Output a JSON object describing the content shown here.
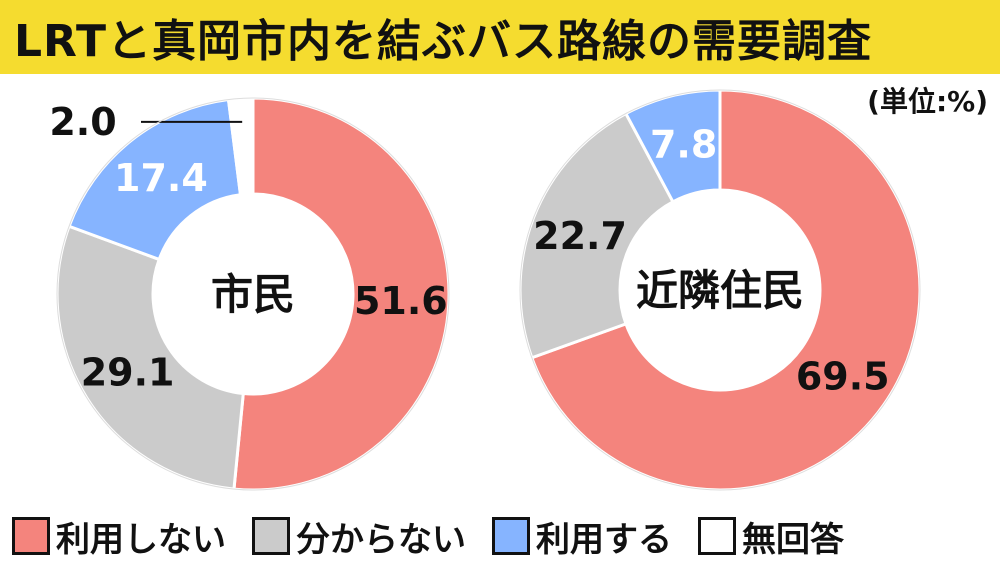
{
  "title": "LRTと真岡市内を結ぶバス路線の需要調査",
  "unit": "(単位:%)",
  "legend": [
    {
      "key": "not_use",
      "label": "利用しない",
      "color": "#f4847d"
    },
    {
      "key": "unknown",
      "label": "分からない",
      "color": "#cbcbcb"
    },
    {
      "key": "use",
      "label": "利用する",
      "color": "#86b4ff"
    },
    {
      "key": "no_answer",
      "label": "無回答",
      "color": "#ffffff"
    }
  ],
  "chart_data": [
    {
      "type": "pie",
      "donut": true,
      "center_label": "市民",
      "slices": [
        {
          "key": "not_use",
          "label": "利用しない",
          "value": 51.6,
          "value_text": "51.6",
          "color": "#f4847d"
        },
        {
          "key": "unknown",
          "label": "分からない",
          "value": 29.1,
          "value_text": "29.1",
          "color": "#cbcbcb"
        },
        {
          "key": "use",
          "label": "利用する",
          "value": 17.4,
          "value_text": "17.4",
          "color": "#86b4ff"
        },
        {
          "key": "no_answer",
          "label": "無回答",
          "value": 2.0,
          "value_text": "2.0",
          "color": "#ffffff"
        }
      ]
    },
    {
      "type": "pie",
      "donut": true,
      "center_label": "近隣住民",
      "slices": [
        {
          "key": "not_use",
          "label": "利用しない",
          "value": 69.5,
          "value_text": "69.5",
          "color": "#f4847d"
        },
        {
          "key": "unknown",
          "label": "分からない",
          "value": 22.7,
          "value_text": "22.7",
          "color": "#cbcbcb"
        },
        {
          "key": "use",
          "label": "利用する",
          "value": 7.8,
          "value_text": "7.8",
          "color": "#86b4ff"
        }
      ]
    }
  ]
}
